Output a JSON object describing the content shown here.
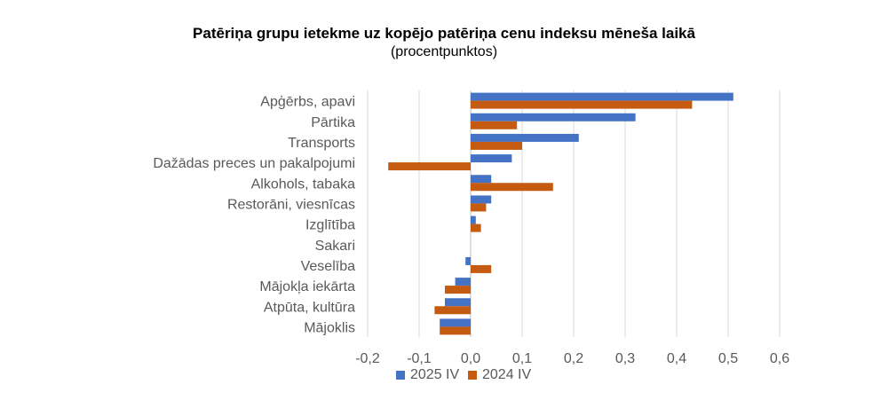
{
  "chart_data": {
    "type": "bar",
    "orientation": "horizontal",
    "title": "Patēriņa grupu ietekme uz kopējo patēriņa cenu indeksu mēneša laikā",
    "subtitle": "(procentpunktos)",
    "categories": [
      "Apģērbs, apavi",
      "Pārtika",
      "Transports",
      "Dažādas preces un pakalpojumi",
      "Alkohols, tabaka",
      "Restorāni, viesnīcas",
      "Izglītība",
      "Sakari",
      "Veselība",
      "Mājokļa iekārta",
      "Atpūta, kultūra",
      "Mājoklis"
    ],
    "series": [
      {
        "name": "2025 IV",
        "color": "#4472C4",
        "values": [
          0.51,
          0.32,
          0.21,
          0.08,
          0.04,
          0.04,
          0.01,
          0.0,
          -0.01,
          -0.03,
          -0.05,
          -0.06
        ]
      },
      {
        "name": "2024 IV",
        "color": "#C55A11",
        "values": [
          0.43,
          0.09,
          0.1,
          -0.16,
          0.16,
          0.03,
          0.02,
          0.0,
          0.04,
          -0.05,
          -0.07,
          -0.06
        ]
      }
    ],
    "xlim": [
      -0.2,
      0.6
    ],
    "xticks": [
      "-0,2",
      "-0,1",
      "0,0",
      "0,1",
      "0,2",
      "0,3",
      "0,4",
      "0,5",
      "0,6"
    ],
    "xtick_values": [
      -0.2,
      -0.1,
      0.0,
      0.1,
      0.2,
      0.3,
      0.4,
      0.5,
      0.6
    ],
    "grid": true,
    "legend": "bottom"
  }
}
